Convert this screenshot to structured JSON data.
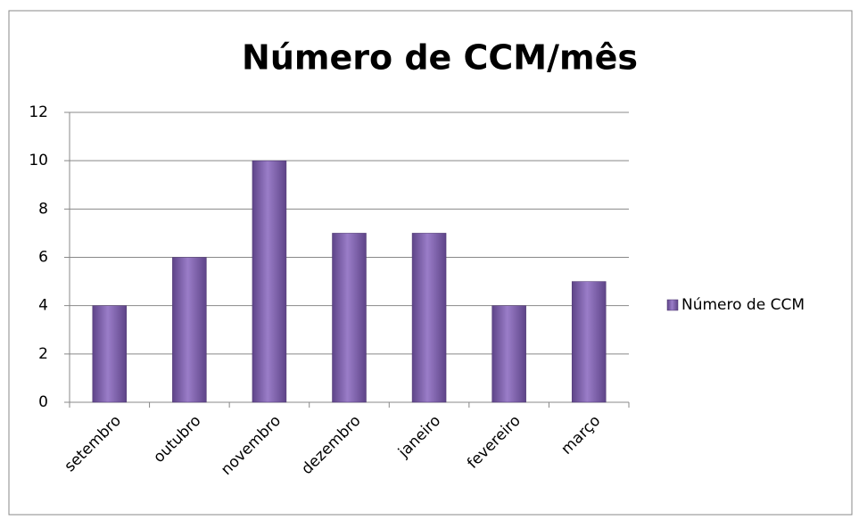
{
  "chart_data": {
    "type": "bar",
    "title": "Número de CCM/mês",
    "categories": [
      "setembro",
      "outubro",
      "novembro",
      "dezembro",
      "janeiro",
      "fevereiro",
      "março"
    ],
    "series": [
      {
        "name": "Número de CCM",
        "color": "#7b5ca8",
        "values": [
          4,
          6,
          10,
          7,
          7,
          4,
          5
        ]
      }
    ],
    "ylim": [
      0,
      12
    ],
    "yticks": [
      0,
      2,
      4,
      6,
      8,
      10,
      12
    ],
    "grid": true,
    "legend": "right"
  }
}
